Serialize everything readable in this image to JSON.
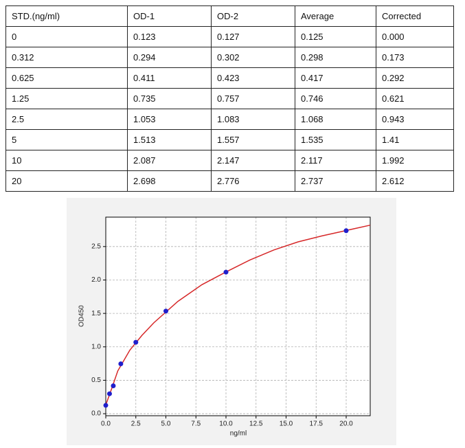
{
  "table": {
    "header": [
      "STD.(ng/ml)",
      "OD-1",
      "OD-2",
      "Average",
      "Corrected"
    ],
    "rows": [
      [
        "0",
        "0.123",
        "0.127",
        "0.125",
        "0.000"
      ],
      [
        "0.312",
        "0.294",
        "0.302",
        "0.298",
        "0.173"
      ],
      [
        "0.625",
        "0.411",
        "0.423",
        "0.417",
        "0.292"
      ],
      [
        "1.25",
        "0.735",
        "0.757",
        "0.746",
        "0.621"
      ],
      [
        "2.5",
        "1.053",
        "1.083",
        "1.068",
        "0.943"
      ],
      [
        "5",
        "1.513",
        "1.557",
        "1.535",
        "1.41"
      ],
      [
        "10",
        "2.087",
        "2.147",
        "2.117",
        "1.992"
      ],
      [
        "20",
        "2.698",
        "2.776",
        "2.737",
        "2.612"
      ]
    ]
  },
  "chart_data": {
    "type": "scatter",
    "x_label": "ng/ml",
    "y_label": "OD450",
    "xlim": [
      0,
      22
    ],
    "ylim": [
      -0.03,
      2.94
    ],
    "xticks": [
      {
        "value": 0,
        "label": "0.0"
      },
      {
        "value": 2.5,
        "label": "2.5"
      },
      {
        "value": 5,
        "label": "5.0"
      },
      {
        "value": 7.5,
        "label": "7.5"
      },
      {
        "value": 10,
        "label": "10.0"
      },
      {
        "value": 12.5,
        "label": "12.5"
      },
      {
        "value": 15,
        "label": "15.0"
      },
      {
        "value": 17.5,
        "label": "17.5"
      },
      {
        "value": 20,
        "label": "20.0"
      }
    ],
    "yticks": [
      {
        "value": 0,
        "label": "0.0"
      },
      {
        "value": 0.5,
        "label": "0.5"
      },
      {
        "value": 1,
        "label": "1.0"
      },
      {
        "value": 1.5,
        "label": "1.5"
      },
      {
        "value": 2,
        "label": "2.0"
      },
      {
        "value": 2.5,
        "label": "2.5"
      }
    ],
    "grid": true,
    "series": [
      {
        "style": "points",
        "color": "#1f1fcc",
        "x": [
          0,
          0.312,
          0.625,
          1.25,
          2.5,
          5,
          10,
          20
        ],
        "values": [
          0.125,
          0.298,
          0.417,
          0.746,
          1.068,
          1.535,
          2.117,
          2.737
        ]
      },
      {
        "style": "line",
        "color": "#d62728",
        "x": [
          0,
          0.5,
          1,
          2,
          3,
          4,
          6,
          8,
          10,
          12,
          14,
          16,
          18,
          20,
          22
        ],
        "values": [
          0.13,
          0.38,
          0.64,
          0.95,
          1.17,
          1.36,
          1.68,
          1.93,
          2.12,
          2.3,
          2.45,
          2.57,
          2.66,
          2.74,
          2.82
        ]
      }
    ]
  }
}
